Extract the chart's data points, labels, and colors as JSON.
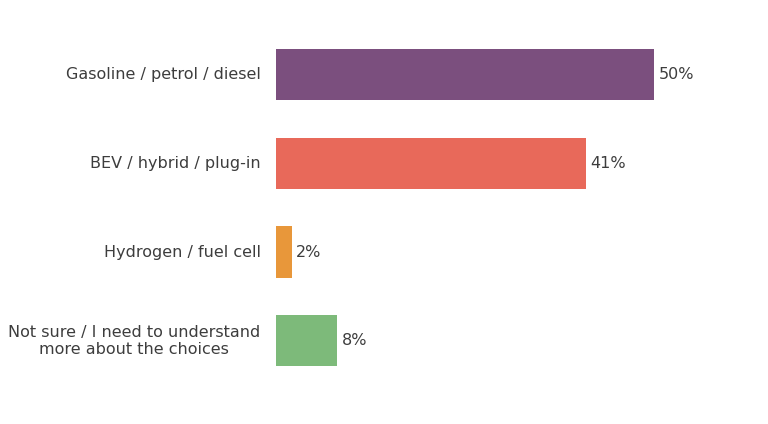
{
  "categories": [
    "Gasoline / petrol / diesel",
    "BEV / hybrid / plug-in",
    "Hydrogen / fuel cell",
    "Not sure / I need to understand\nmore about the choices"
  ],
  "values": [
    50,
    41,
    2,
    8
  ],
  "colors": [
    "#7b4f7e",
    "#e8695a",
    "#e8973a",
    "#7dba7a"
  ],
  "labels": [
    "50%",
    "41%",
    "2%",
    "8%"
  ],
  "background_color": "#ffffff",
  "text_color": "#3d3d3d",
  "bar_height": 0.58,
  "label_fontsize": 11.5,
  "tick_fontsize": 11.5
}
